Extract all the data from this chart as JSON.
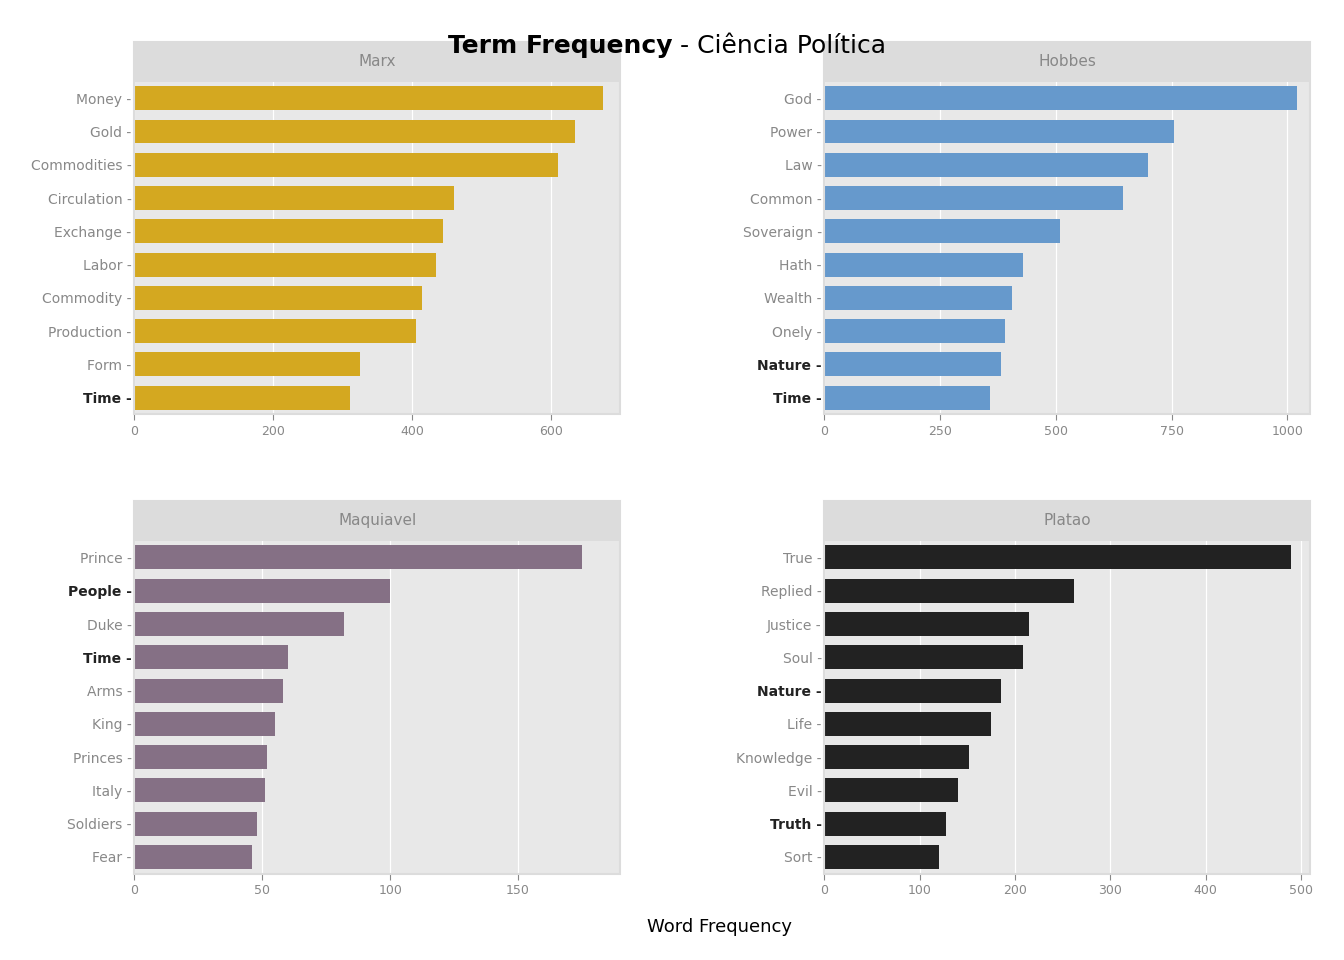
{
  "title_bold": "Term Frequency",
  "title_regular": " - Ciência Política",
  "subplots": [
    {
      "title": "Marx",
      "color": "#D4A820",
      "words": [
        "Money",
        "Gold",
        "Commodities",
        "Circulation",
        "Exchange",
        "Labor",
        "Commodity",
        "Production",
        "Form",
        "Time"
      ],
      "values": [
        675,
        635,
        610,
        460,
        445,
        435,
        415,
        405,
        325,
        310
      ],
      "bold_words": [
        "Time"
      ],
      "xlim": [
        0,
        700
      ],
      "xticks": [
        0,
        200,
        400,
        600
      ]
    },
    {
      "title": "Hobbes",
      "color": "#6699CC",
      "words": [
        "God",
        "Power",
        "Law",
        "Common",
        "Soveraign",
        "Hath",
        "Wealth",
        "Onely",
        "Nature",
        "Time"
      ],
      "values": [
        1020,
        755,
        700,
        645,
        510,
        430,
        405,
        390,
        382,
        358
      ],
      "bold_words": [
        "Nature",
        "Time"
      ],
      "xlim": [
        0,
        1050
      ],
      "xticks": [
        0,
        250,
        500,
        750,
        1000
      ]
    },
    {
      "title": "Maquiavel",
      "color": "#857085",
      "words": [
        "Prince",
        "People",
        "Duke",
        "Time",
        "Arms",
        "King",
        "Princes",
        "Italy",
        "Soldiers",
        "Fear"
      ],
      "values": [
        175,
        100,
        82,
        60,
        58,
        55,
        52,
        51,
        48,
        46
      ],
      "bold_words": [
        "People",
        "Time"
      ],
      "xlim": [
        0,
        190
      ],
      "xticks": [
        0,
        50,
        100,
        150
      ]
    },
    {
      "title": "Platao",
      "color": "#222222",
      "words": [
        "True",
        "Replied",
        "Justice",
        "Soul",
        "Nature",
        "Life",
        "Knowledge",
        "Evil",
        "Truth",
        "Sort"
      ],
      "values": [
        490,
        262,
        215,
        208,
        185,
        175,
        152,
        140,
        128,
        120
      ],
      "bold_words": [
        "Nature",
        "Truth"
      ],
      "xlim": [
        0,
        510
      ],
      "xticks": [
        0,
        100,
        200,
        300,
        400,
        500
      ]
    }
  ],
  "xlabel": "Word Frequency",
  "panel_bg": "#DCDCDC",
  "plot_bg": "#E8E8E8",
  "tick_label_color": "#888888",
  "title_panel_color": "#888888",
  "bold_label_color": "#222222",
  "bar_gap": 0.15
}
